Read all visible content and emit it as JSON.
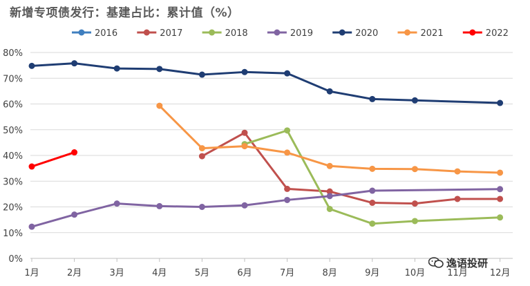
{
  "chart_data": {
    "type": "line",
    "title": "新增专项债发行：基建占比：累计值（%）",
    "xlabel": "",
    "ylabel": "",
    "categories": [
      "1月",
      "2月",
      "3月",
      "4月",
      "5月",
      "6月",
      "7月",
      "8月",
      "9月",
      "10月",
      "11月",
      "12月"
    ],
    "y_ticks": [
      "0%",
      "10%",
      "20%",
      "30%",
      "40%",
      "50%",
      "60%",
      "70%",
      "80%"
    ],
    "ylim": [
      0,
      80
    ],
    "grid": "horizontal",
    "legend_position": "top",
    "series": [
      {
        "name": "2016",
        "color": "#3f7fbf",
        "values": [
          null,
          null,
          null,
          null,
          null,
          null,
          null,
          null,
          null,
          null,
          null,
          null
        ]
      },
      {
        "name": "2017",
        "color": "#c0504d",
        "values": [
          null,
          null,
          null,
          null,
          39.7,
          48.8,
          27.0,
          26.0,
          21.6,
          21.3,
          23.1,
          23.1
        ]
      },
      {
        "name": "2018",
        "color": "#9bbb59",
        "values": [
          null,
          null,
          null,
          null,
          null,
          44.4,
          49.7,
          19.2,
          13.5,
          14.5,
          null,
          15.9
        ]
      },
      {
        "name": "2019",
        "color": "#8064a2",
        "values": [
          12.3,
          17.0,
          21.3,
          20.3,
          20.0,
          20.6,
          22.7,
          24.2,
          26.3,
          null,
          null,
          26.9
        ]
      },
      {
        "name": "2020",
        "color": "#1f3d73",
        "values": [
          74.8,
          75.8,
          73.8,
          73.6,
          71.4,
          72.4,
          71.9,
          64.9,
          61.9,
          61.4,
          null,
          60.4
        ]
      },
      {
        "name": "2021",
        "color": "#f79646",
        "values": [
          null,
          null,
          null,
          59.3,
          42.8,
          43.6,
          41.1,
          35.9,
          34.8,
          34.7,
          33.8,
          33.3
        ]
      },
      {
        "name": "2022",
        "color": "#ff0000",
        "values": [
          35.7,
          41.2,
          null,
          null,
          null,
          null,
          null,
          null,
          null,
          null,
          null,
          null
        ]
      }
    ]
  },
  "watermark": {
    "text": "逸语投研",
    "icon": "wechat-icon"
  }
}
